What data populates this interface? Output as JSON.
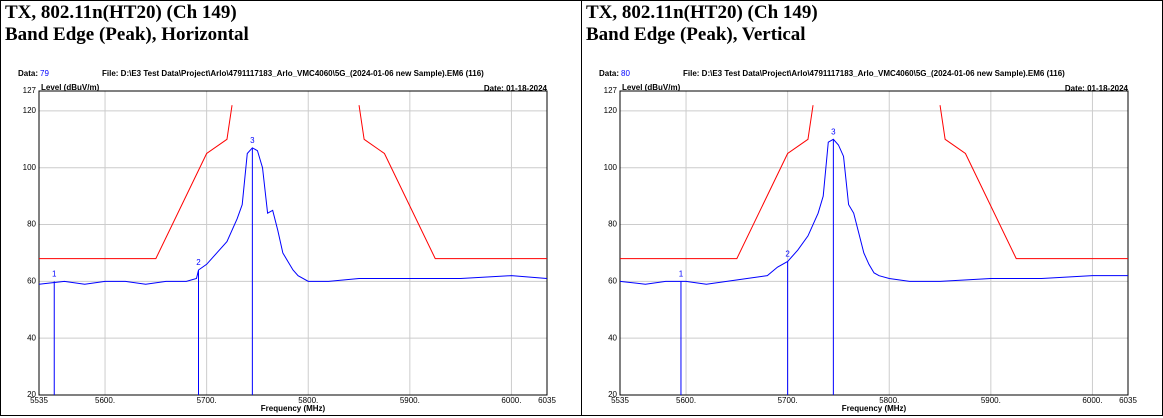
{
  "chart_data": [
    {
      "type": "line",
      "title": "TX, 802.11n(HT20) (Ch 149)",
      "subtitle": "Band Edge (Peak), Horizontal",
      "data_label": "Data:",
      "data_id": "79",
      "file": "File: D:\\E3 Test Data\\Project\\Arlo\\4791117183_Arlo_VMC4060\\5G_(2024-01-06 new Sample).EM6  (116)",
      "date": "Date: 01-18-2024",
      "y_label": "Level (dBuV/m)",
      "x_label": "Frequency (MHz)",
      "xlim": [
        5535,
        6035
      ],
      "xticks": [
        5535,
        {
          "value": 5600,
          "label": "5600."
        },
        {
          "value": 5700,
          "label": "5700."
        },
        {
          "value": 5800,
          "label": "5800."
        },
        {
          "value": 5900,
          "label": "5900."
        },
        {
          "value": 6000,
          "label": "6000."
        },
        6035
      ],
      "ylim": [
        20,
        127
      ],
      "yticks": [
        20,
        40,
        60,
        80,
        100,
        120,
        127
      ],
      "grid": true,
      "series": [
        {
          "color": "#0000ff",
          "x": [
            5535,
            5560,
            5580,
            5600,
            5620,
            5640,
            5660,
            5680,
            5690,
            5692,
            5700,
            5710,
            5720,
            5725,
            5730,
            5735,
            5740,
            5745,
            5750,
            5755,
            5760,
            5765,
            5770,
            5775,
            5780,
            5785,
            5790,
            5800,
            5820,
            5850,
            5900,
            5950,
            6000,
            6035
          ],
          "values": [
            59,
            60,
            59,
            60,
            60,
            59,
            60,
            60,
            61,
            64,
            66,
            70,
            74,
            78,
            82,
            87,
            105,
            107,
            106,
            100,
            84,
            85,
            78,
            70,
            67,
            64,
            62,
            60,
            60,
            61,
            61,
            61,
            62,
            61
          ]
        },
        {
          "color": "#ff0000",
          "x": [
            5535,
            5650,
            5700,
            5720,
            5725,
            5850,
            5855,
            5875,
            5925,
            6035
          ],
          "values": [
            68,
            68,
            105,
            110,
            122,
            122,
            110,
            105,
            68,
            68
          ],
          "breaks": [
            4
          ]
        }
      ],
      "markers": [
        {
          "label": "1",
          "x": 5550,
          "value": 60
        },
        {
          "label": "2",
          "x": 5692,
          "value": 64
        },
        {
          "label": "3",
          "x": 5745,
          "value": 107
        }
      ]
    },
    {
      "type": "line",
      "title": "TX, 802.11n(HT20) (Ch 149)",
      "subtitle": "Band Edge (Peak), Vertical",
      "data_label": "Data:",
      "data_id": "80",
      "file": "File: D:\\E3 Test Data\\Project\\Arlo\\4791117183_Arlo_VMC4060\\5G_(2024-01-06 new Sample).EM6  (116)",
      "date": "Date: 01-18-2024",
      "y_label": "Level (dBuV/m)",
      "x_label": "Frequency (MHz)",
      "xlim": [
        5535,
        6035
      ],
      "xticks": [
        5535,
        {
          "value": 5600,
          "label": "5600."
        },
        {
          "value": 5700,
          "label": "5700."
        },
        {
          "value": 5800,
          "label": "5800."
        },
        {
          "value": 5900,
          "label": "5900."
        },
        {
          "value": 6000,
          "label": "6000."
        },
        6035
      ],
      "ylim": [
        20,
        127
      ],
      "yticks": [
        20,
        40,
        60,
        80,
        100,
        120,
        127
      ],
      "grid": true,
      "series": [
        {
          "color": "#0000ff",
          "x": [
            5535,
            5560,
            5580,
            5600,
            5620,
            5640,
            5660,
            5680,
            5690,
            5700,
            5710,
            5720,
            5725,
            5730,
            5735,
            5740,
            5745,
            5750,
            5755,
            5760,
            5765,
            5770,
            5775,
            5780,
            5785,
            5790,
            5800,
            5820,
            5850,
            5900,
            5950,
            6000,
            6035
          ],
          "values": [
            60,
            59,
            60,
            60,
            59,
            60,
            61,
            62,
            65,
            67,
            71,
            76,
            80,
            84,
            90,
            109,
            110,
            108,
            104,
            87,
            84,
            77,
            70,
            66,
            63,
            62,
            61,
            60,
            60,
            61,
            61,
            62,
            62
          ]
        },
        {
          "color": "#ff0000",
          "x": [
            5535,
            5650,
            5700,
            5720,
            5725,
            5850,
            5855,
            5875,
            5925,
            6035
          ],
          "values": [
            68,
            68,
            105,
            110,
            122,
            122,
            110,
            105,
            68,
            68
          ],
          "breaks": [
            4
          ]
        }
      ],
      "markers": [
        {
          "label": "1",
          "x": 5595,
          "value": 60
        },
        {
          "label": "2",
          "x": 5700,
          "value": 67
        },
        {
          "label": "3",
          "x": 5745,
          "value": 110
        }
      ]
    }
  ]
}
